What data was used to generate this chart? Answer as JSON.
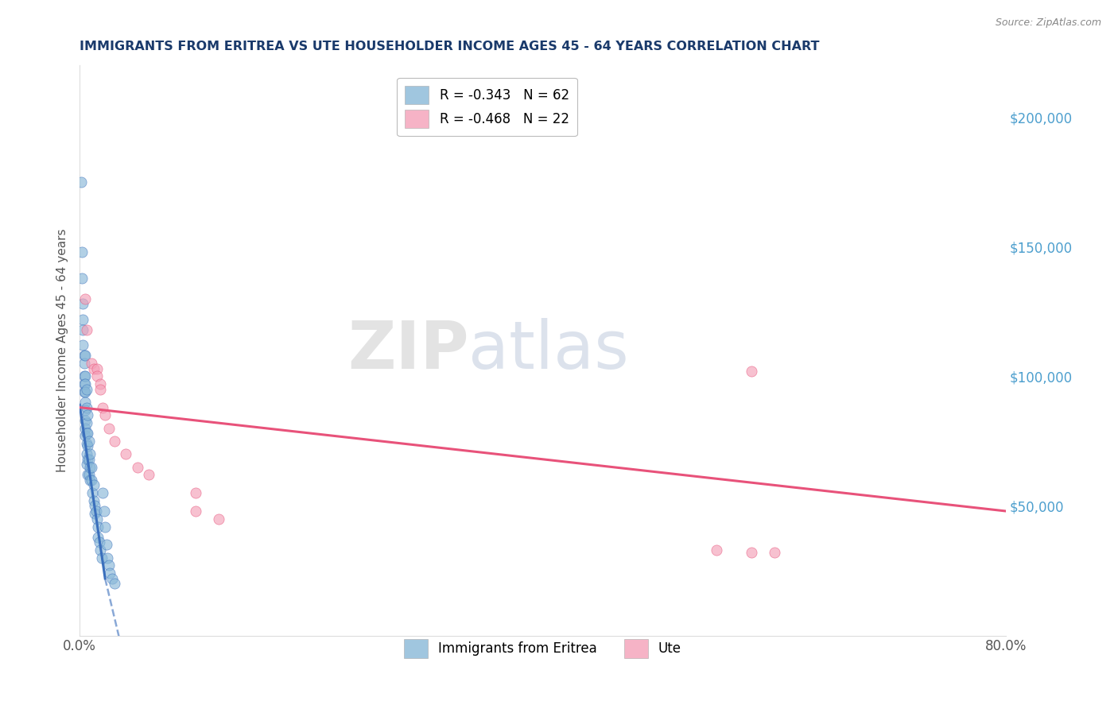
{
  "title": "IMMIGRANTS FROM ERITREA VS UTE HOUSEHOLDER INCOME AGES 45 - 64 YEARS CORRELATION CHART",
  "source": "Source: ZipAtlas.com",
  "ylabel": "Householder Income Ages 45 - 64 years",
  "right_yticks": [
    "$50,000",
    "$100,000",
    "$150,000",
    "$200,000"
  ],
  "right_ytick_values": [
    50000,
    100000,
    150000,
    200000
  ],
  "legend_series": [
    {
      "label": "R = -0.343   N = 62",
      "color": "#89b8d8"
    },
    {
      "label": "R = -0.468   N = 22",
      "color": "#f4a0b8"
    }
  ],
  "legend_bottom": [
    {
      "label": "Immigrants from Eritrea",
      "color": "#89b8d8"
    },
    {
      "label": "Ute",
      "color": "#f4a0b8"
    }
  ],
  "scatter_eritrea": [
    [
      0.001,
      175000
    ],
    [
      0.002,
      148000
    ],
    [
      0.002,
      138000
    ],
    [
      0.003,
      128000
    ],
    [
      0.003,
      122000
    ],
    [
      0.003,
      118000
    ],
    [
      0.003,
      112000
    ],
    [
      0.004,
      108000
    ],
    [
      0.004,
      105000
    ],
    [
      0.004,
      100000
    ],
    [
      0.004,
      97000
    ],
    [
      0.004,
      94000
    ],
    [
      0.005,
      108000
    ],
    [
      0.005,
      100000
    ],
    [
      0.005,
      97000
    ],
    [
      0.005,
      94000
    ],
    [
      0.005,
      90000
    ],
    [
      0.005,
      87000
    ],
    [
      0.005,
      83000
    ],
    [
      0.005,
      80000
    ],
    [
      0.005,
      77000
    ],
    [
      0.006,
      95000
    ],
    [
      0.006,
      88000
    ],
    [
      0.006,
      82000
    ],
    [
      0.006,
      78000
    ],
    [
      0.006,
      74000
    ],
    [
      0.006,
      70000
    ],
    [
      0.006,
      66000
    ],
    [
      0.007,
      85000
    ],
    [
      0.007,
      78000
    ],
    [
      0.007,
      73000
    ],
    [
      0.007,
      68000
    ],
    [
      0.007,
      62000
    ],
    [
      0.008,
      75000
    ],
    [
      0.008,
      68000
    ],
    [
      0.008,
      62000
    ],
    [
      0.009,
      70000
    ],
    [
      0.009,
      65000
    ],
    [
      0.009,
      60000
    ],
    [
      0.01,
      65000
    ],
    [
      0.01,
      60000
    ],
    [
      0.011,
      55000
    ],
    [
      0.012,
      58000
    ],
    [
      0.012,
      52000
    ],
    [
      0.013,
      50000
    ],
    [
      0.013,
      47000
    ],
    [
      0.014,
      48000
    ],
    [
      0.015,
      45000
    ],
    [
      0.016,
      42000
    ],
    [
      0.016,
      38000
    ],
    [
      0.017,
      36000
    ],
    [
      0.018,
      33000
    ],
    [
      0.019,
      30000
    ],
    [
      0.02,
      55000
    ],
    [
      0.021,
      48000
    ],
    [
      0.022,
      42000
    ],
    [
      0.023,
      35000
    ],
    [
      0.024,
      30000
    ],
    [
      0.025,
      27000
    ],
    [
      0.026,
      24000
    ],
    [
      0.028,
      22000
    ],
    [
      0.03,
      20000
    ]
  ],
  "scatter_ute": [
    [
      0.005,
      130000
    ],
    [
      0.006,
      118000
    ],
    [
      0.01,
      105000
    ],
    [
      0.012,
      103000
    ],
    [
      0.015,
      103000
    ],
    [
      0.015,
      100000
    ],
    [
      0.018,
      97000
    ],
    [
      0.018,
      95000
    ],
    [
      0.02,
      88000
    ],
    [
      0.022,
      85000
    ],
    [
      0.025,
      80000
    ],
    [
      0.03,
      75000
    ],
    [
      0.04,
      70000
    ],
    [
      0.05,
      65000
    ],
    [
      0.06,
      62000
    ],
    [
      0.1,
      55000
    ],
    [
      0.58,
      102000
    ],
    [
      0.1,
      48000
    ],
    [
      0.12,
      45000
    ],
    [
      0.55,
      33000
    ],
    [
      0.58,
      32000
    ],
    [
      0.6,
      32000
    ]
  ],
  "trendline_eritrea_solid": {
    "x": [
      0.0,
      0.022
    ],
    "y": [
      89000,
      22000
    ]
  },
  "trendline_eritrea_dashed": {
    "x": [
      0.022,
      0.038
    ],
    "y": [
      22000,
      -8000
    ]
  },
  "trendline_ute": {
    "x": [
      0.0,
      0.8
    ],
    "y": [
      88000,
      48000
    ]
  },
  "xmin": 0.0,
  "xmax": 0.8,
  "ymin": 0,
  "ymax": 220000,
  "watermark_zip": "ZIP",
  "watermark_atlas": "atlas",
  "background_color": "#ffffff",
  "grid_color": "#cccccc",
  "title_color": "#1a3a6b",
  "axis_label_color": "#555555",
  "right_axis_color": "#4d9fce",
  "trendline_blue": "#3a6fbc",
  "trendline_pink": "#e8527a"
}
